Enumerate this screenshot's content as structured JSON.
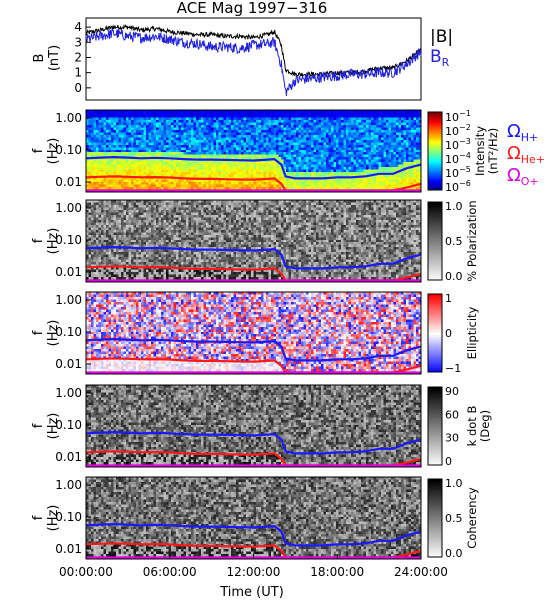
{
  "title": "ACE Mag 1997−316",
  "xlabel": "Time (UT)",
  "xticks": [
    "00:00:00",
    "06:00:00",
    "12:00:00",
    "18:00:00",
    "24:00:00"
  ],
  "colors": {
    "B": "#000000",
    "BR": "#2222dd",
    "H": "#1a1aff",
    "He": "#ff1a1a",
    "O": "#e000e0"
  },
  "legend": {
    "B_label": "|B|",
    "BR_main": "B",
    "BR_sub": "R",
    "omega": "Ω",
    "H_sub": "H+",
    "He_sub": "He+",
    "O_sub": "O+"
  },
  "chart_data": [
    {
      "type": "line",
      "ylabel": "B",
      "ylabel_unit": "(nT)",
      "ylim": [
        -0.8,
        4.6
      ],
      "yticks": [
        "4",
        "3",
        "2",
        "1",
        "0"
      ],
      "x_hours": [
        0,
        1,
        2,
        3,
        4,
        5,
        6,
        7,
        8,
        9,
        10,
        11,
        12,
        13,
        13.5,
        14,
        14.3,
        15,
        16,
        17,
        18,
        19,
        20,
        21,
        22,
        23,
        24
      ],
      "series": [
        {
          "id": "B",
          "values": [
            3.6,
            3.8,
            4.0,
            4.0,
            3.8,
            3.9,
            3.7,
            3.6,
            3.5,
            3.5,
            3.4,
            3.4,
            3.3,
            3.5,
            3.7,
            2.8,
            1.2,
            0.9,
            0.9,
            0.9,
            1.0,
            1.0,
            1.1,
            1.3,
            1.3,
            1.8,
            2.5
          ]
        },
        {
          "id": "BR",
          "values": [
            3.2,
            3.4,
            3.6,
            3.4,
            3.3,
            3.4,
            3.2,
            3.0,
            2.9,
            2.7,
            2.7,
            2.6,
            2.8,
            2.9,
            3.0,
            1.5,
            -0.3,
            0.5,
            0.6,
            0.7,
            0.8,
            0.9,
            0.9,
            1.0,
            1.0,
            1.6,
            2.4
          ]
        }
      ]
    },
    {
      "type": "heatmap",
      "ylabel": "f",
      "ylabel_unit": "(Hz)",
      "yticks": [
        "1.00",
        "0.10",
        "0.01"
      ],
      "colorbar_ticks_base": [
        "10",
        "10",
        "10",
        "10",
        "10",
        "10"
      ],
      "colorbar_ticks_exp": [
        "−1",
        "−2",
        "−3",
        "−4",
        "−5",
        "−6"
      ],
      "colorbar_label": "Intensity",
      "colorbar_unit": "(nT²/Hz)"
    },
    {
      "type": "heatmap",
      "ylabel": "f",
      "ylabel_unit": "(Hz)",
      "yticks": [
        "1.00",
        "0.10",
        "0.01"
      ],
      "colorbar_ticks": [
        "1.0",
        "0.5",
        "0.0"
      ],
      "colorbar_label": "% Polarization"
    },
    {
      "type": "heatmap",
      "ylabel": "f",
      "ylabel_unit": "(Hz)",
      "yticks": [
        "1.00",
        "0.10",
        "0.01"
      ],
      "colorbar_ticks": [
        "1",
        "0",
        "−1"
      ],
      "colorbar_label": "Ellipticity"
    },
    {
      "type": "heatmap",
      "ylabel": "f",
      "ylabel_unit": "(Hz)",
      "yticks": [
        "1.00",
        "0.10",
        "0.01"
      ],
      "colorbar_ticks": [
        "90",
        "60",
        "30",
        "0"
      ],
      "colorbar_label": "k dot B",
      "colorbar_unit": "(Deg)"
    },
    {
      "type": "heatmap",
      "ylabel": "f",
      "ylabel_unit": "(Hz)",
      "yticks": [
        "1.00",
        "0.10",
        "0.01"
      ],
      "colorbar_ticks": [
        "1.0",
        "0.5",
        "0.0"
      ],
      "colorbar_label": "Coherency"
    }
  ],
  "gyrofrequency_lines": {
    "x_hours": [
      0,
      1,
      2,
      3,
      4,
      5,
      6,
      7,
      8,
      9,
      10,
      11,
      12,
      13,
      13.5,
      14,
      14.3,
      15,
      16,
      17,
      18,
      19,
      20,
      21,
      22,
      23,
      24
    ],
    "H": [
      0.055,
      0.058,
      0.06,
      0.058,
      0.055,
      0.057,
      0.055,
      0.052,
      0.05,
      0.05,
      0.049,
      0.048,
      0.047,
      0.05,
      0.052,
      0.035,
      0.015,
      0.013,
      0.013,
      0.013,
      0.014,
      0.014,
      0.015,
      0.018,
      0.018,
      0.027,
      0.035
    ],
    "He": [
      0.014,
      0.0145,
      0.015,
      0.0145,
      0.014,
      0.0142,
      0.0138,
      0.013,
      0.0125,
      0.0125,
      0.0122,
      0.012,
      0.0118,
      0.0125,
      0.013,
      0.0088,
      0.0038,
      0.0033,
      0.0033,
      0.0033,
      0.0035,
      0.0035,
      0.0038,
      0.0045,
      0.0045,
      0.0068,
      0.0088
    ],
    "O": [
      0.0035,
      0.0036,
      0.0038,
      0.0036,
      0.0035,
      0.0036,
      0.0035,
      0.0033,
      0.0031,
      0.0031,
      0.0031,
      0.003,
      0.003,
      0.0031,
      0.0033,
      0.0022,
      0.001,
      0.0008,
      0.0008,
      0.0008,
      0.0009,
      0.0009,
      0.001,
      0.0011,
      0.0011,
      0.0017,
      0.0022
    ]
  }
}
